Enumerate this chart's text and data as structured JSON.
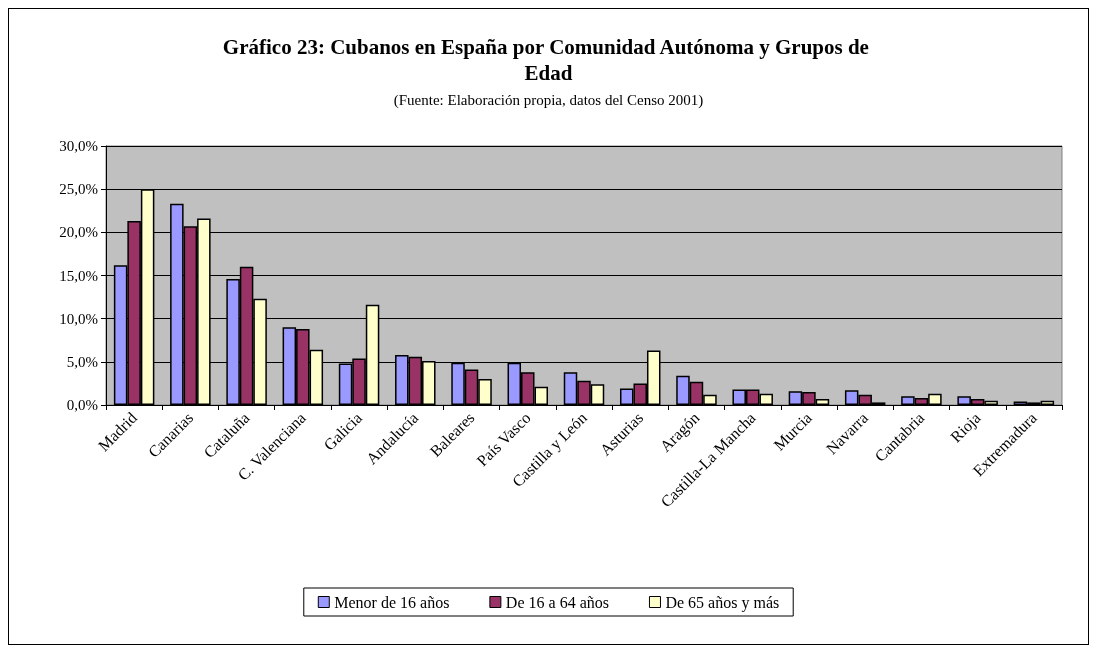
{
  "chart_data": {
    "type": "bar",
    "title": "Gráfico 23: Cubanos en España por Comunidad Autónoma y Grupos de Edad",
    "subtitle": "(Fuente: Elaboración propia, datos del Censo 2001)",
    "categories": [
      "Madrid",
      "Canarias",
      "Cataluña",
      "C. Valenciana",
      "Galicia",
      "Andalucía",
      "Baleares",
      "País Vasco",
      "Castilla y León",
      "Asturias",
      "Aragón",
      "Castilla-La Mancha",
      "Murcia",
      "Navarra",
      "Cantabria",
      "Rioja",
      "Extremadura"
    ],
    "series": [
      {
        "name": "Menor de 16 años",
        "color": "#9999ff",
        "values": [
          16.2,
          23.3,
          14.6,
          9.0,
          4.8,
          5.8,
          4.9,
          4.9,
          3.8,
          1.9,
          3.4,
          1.8,
          1.6,
          1.7,
          1.0,
          1.0,
          0.4
        ]
      },
      {
        "name": "De 16 a 64 años",
        "color": "#993366",
        "values": [
          21.3,
          20.7,
          16.0,
          8.8,
          5.4,
          5.6,
          4.1,
          3.8,
          2.8,
          2.5,
          2.7,
          1.8,
          1.5,
          1.2,
          0.8,
          0.7,
          0.3
        ]
      },
      {
        "name": "De 65 años y más",
        "color": "#ffffcc",
        "values": [
          25.0,
          21.6,
          12.3,
          6.4,
          11.6,
          5.1,
          3.0,
          2.1,
          2.4,
          6.3,
          1.2,
          1.3,
          0.7,
          0.3,
          1.3,
          0.5,
          0.5
        ]
      }
    ],
    "ylim": [
      0,
      30
    ],
    "yticks": [
      {
        "value": 0,
        "label": "0,0%"
      },
      {
        "value": 5,
        "label": "5,0%"
      },
      {
        "value": 10,
        "label": "10,0%"
      },
      {
        "value": 15,
        "label": "15,0%"
      },
      {
        "value": 20,
        "label": "20,0%"
      },
      {
        "value": 25,
        "label": "25,0%"
      },
      {
        "value": 30,
        "label": "30,0%"
      }
    ],
    "grid": "y",
    "legend": "bottom"
  }
}
